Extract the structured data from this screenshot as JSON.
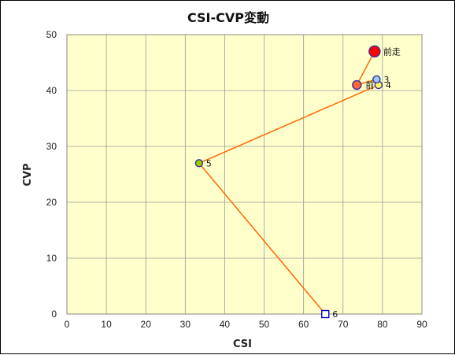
{
  "chart_data": {
    "type": "scatter",
    "title": "CSI-CVP変動",
    "xlabel": "CSI",
    "ylabel": "CVP",
    "xlim": [
      0,
      90
    ],
    "ylim": [
      0,
      50
    ],
    "x_ticks": [
      0,
      10,
      20,
      30,
      40,
      50,
      60,
      70,
      80,
      90
    ],
    "y_ticks": [
      0,
      10,
      20,
      30,
      40,
      50
    ],
    "grid": true,
    "plot_background": "#ffffcc",
    "line_color": "#ff6600",
    "points": [
      {
        "label": "前走",
        "x": 78,
        "y": 47,
        "marker": "circle",
        "fill": "#ff0000",
        "stroke": "#333399",
        "size": "large"
      },
      {
        "label": "前",
        "x": 73.5,
        "y": 41,
        "marker": "circle",
        "fill": "#ff6633",
        "stroke": "#333399",
        "size": "medium"
      },
      {
        "label": "3",
        "x": 78.5,
        "y": 42,
        "marker": "circle",
        "fill": "#99ccff",
        "stroke": "#333399",
        "size": "small"
      },
      {
        "label": "4",
        "x": 79,
        "y": 41,
        "marker": "circle",
        "fill": "#ffff66",
        "stroke": "#333399",
        "size": "small"
      },
      {
        "label": "5",
        "x": 33.5,
        "y": 27,
        "marker": "circle",
        "fill": "#99cc00",
        "stroke": "#333399",
        "size": "small"
      },
      {
        "label": "6",
        "x": 65.5,
        "y": 0,
        "marker": "square",
        "fill": "#ffffff",
        "stroke": "#0000cc",
        "size": "small"
      }
    ],
    "path_order": [
      "前走",
      "前",
      "3",
      "4",
      "5",
      "6"
    ]
  }
}
